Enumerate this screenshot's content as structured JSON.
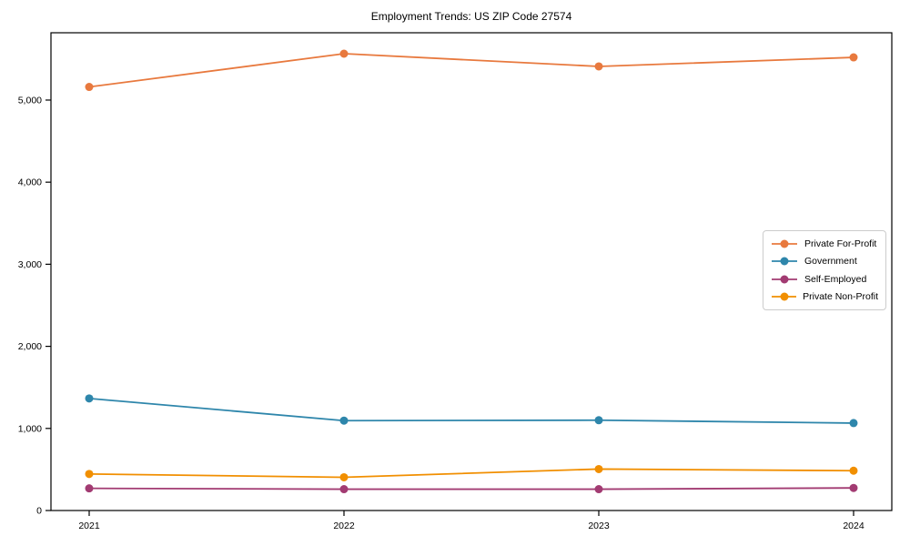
{
  "chart_data": {
    "type": "line",
    "title": "Employment Trends: US ZIP Code 27574",
    "xlabel": "",
    "ylabel": "",
    "grid": false,
    "legend_position": "center right",
    "x": [
      2021,
      2022,
      2023,
      2024
    ],
    "xticklabels": [
      "2021",
      "2022",
      "2023",
      "2024"
    ],
    "ylim": [
      0,
      5820
    ],
    "yticks": [
      0,
      1000,
      2000,
      3000,
      4000,
      5000
    ],
    "ytick_labels": [
      "0",
      "1,000",
      "2,000",
      "3,000",
      "4,000",
      "5,000"
    ],
    "series": [
      {
        "name": "Private For-Profit",
        "color": "#E8793E",
        "values": [
          5160,
          5565,
          5410,
          5520
        ]
      },
      {
        "name": "Government",
        "color": "#2E86AB",
        "values": [
          1365,
          1095,
          1100,
          1065
        ]
      },
      {
        "name": "Self-Employed",
        "color": "#A23B72",
        "values": [
          270,
          260,
          260,
          275
        ]
      },
      {
        "name": "Private Non-Profit",
        "color": "#F18F01",
        "values": [
          445,
          405,
          505,
          485
        ]
      }
    ],
    "axis_color": "#000000",
    "background_color": "#ffffff"
  }
}
